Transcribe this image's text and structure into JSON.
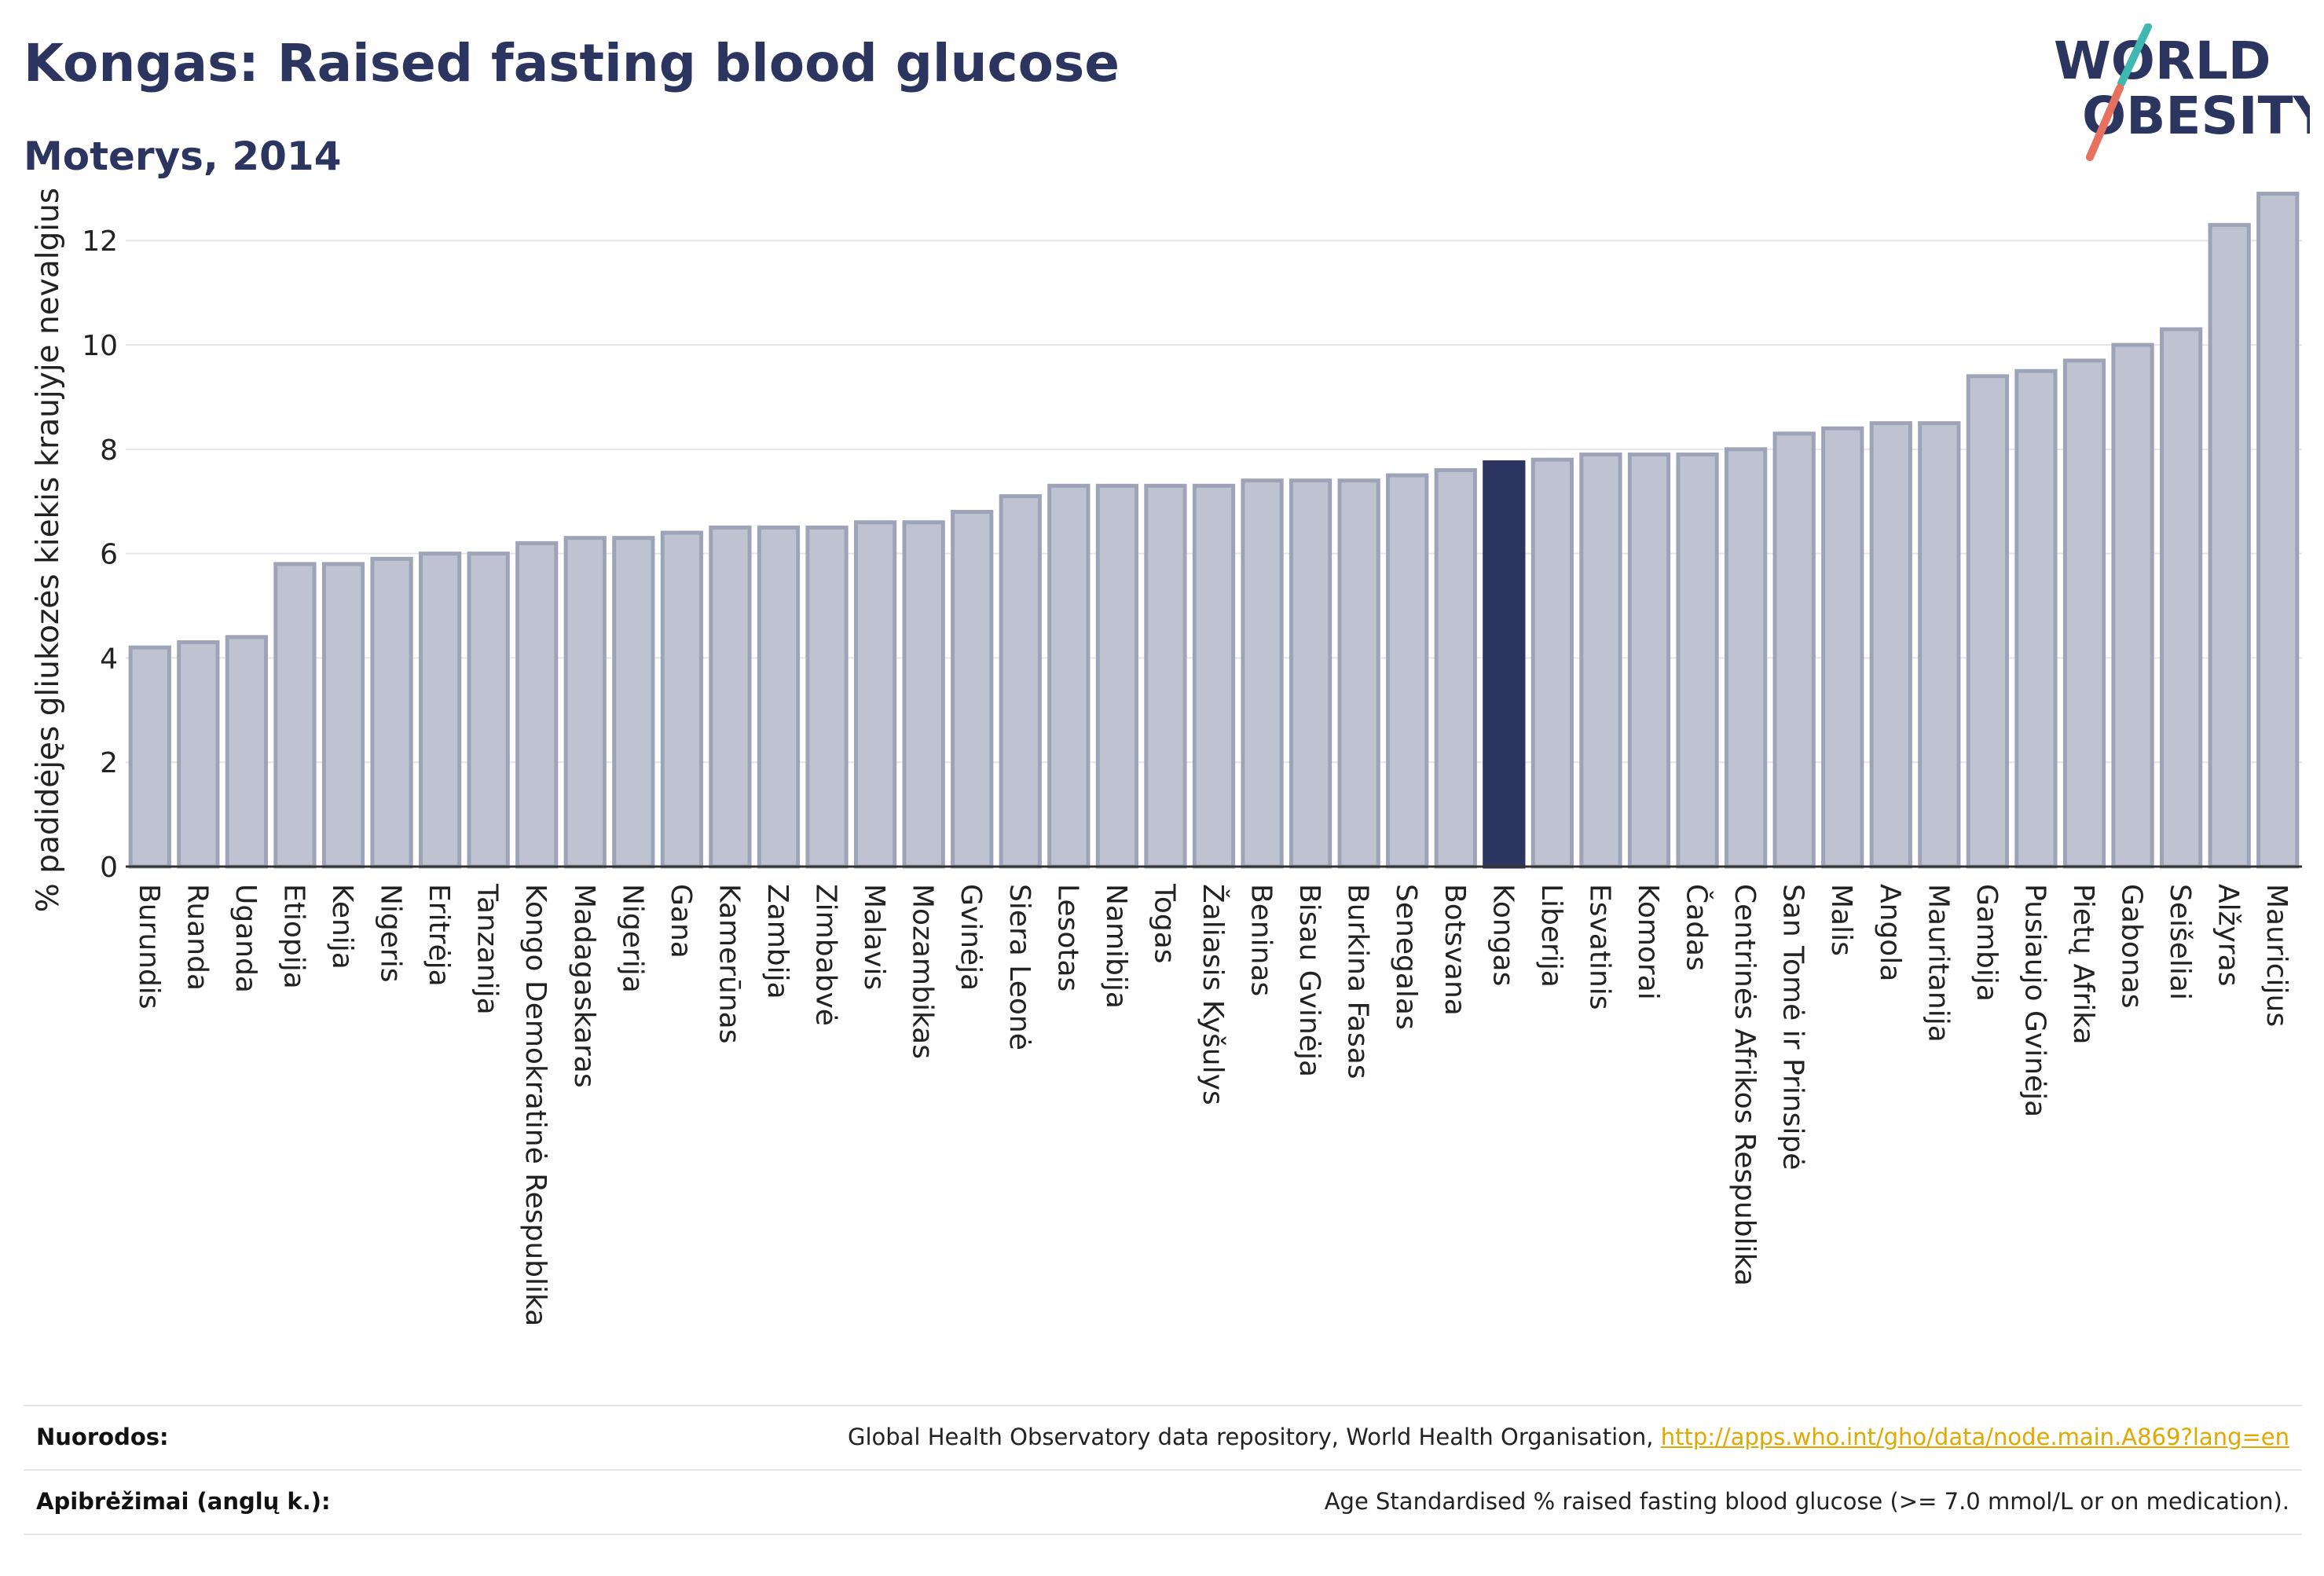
{
  "header": {
    "title": "Kongas: Raised fasting blood glucose",
    "subtitle": "Moterys, 2014"
  },
  "logo": {
    "line1": "WORLD",
    "line2": "OBESITY"
  },
  "colors": {
    "title": "#2b3560",
    "bar": "#bfc3d1",
    "bar_stroke": "#9ea4b8",
    "highlight": "#2b3560",
    "logo_teal": "#3fb8b0",
    "logo_coral": "#e8705e",
    "link": "#e0a800"
  },
  "chart_data": {
    "type": "bar",
    "ylabel": "% padidėjęs gliukozės kiekis kraujyje nevalgius",
    "xlabel": "",
    "ylim": [
      0,
      13.6
    ],
    "yticks": [
      0,
      2,
      4,
      6,
      8,
      10,
      12
    ],
    "grid": true,
    "highlight": "Kongas",
    "categories": [
      "Burundis",
      "Ruanda",
      "Uganda",
      "Etiopija",
      "Kenija",
      "Nigeris",
      "Eritrėja",
      "Tanzanija",
      "Kongo Demokratinė Respublika",
      "Madagaskaras",
      "Nigerija",
      "Gana",
      "Kamerūnas",
      "Zambija",
      "Zimbabvė",
      "Malavis",
      "Mozambikas",
      "Gvinėja",
      "Siera Leonė",
      "Lesotas",
      "Namibija",
      "Togas",
      "Žaliasis Kyšulys",
      "Beninas",
      "Bisau Gvinėja",
      "Burkina Fasas",
      "Senegalas",
      "Botsvana",
      "Kongas",
      "Liberija",
      "Esvatinis",
      "Komorai",
      "Čadas",
      "Centrinės Afrikos Respublika",
      "San Tomė ir Prinsipė",
      "Malis",
      "Angola",
      "Mauritanija",
      "Gambija",
      "Pusiaujo Gvinėja",
      "Pietų Afrika",
      "Gabonas",
      "Seišeliai",
      "Alžyras",
      "Mauricijus"
    ],
    "values": [
      4.2,
      4.3,
      4.4,
      5.8,
      5.8,
      5.9,
      6.0,
      6.0,
      6.2,
      6.3,
      6.3,
      6.4,
      6.5,
      6.5,
      6.5,
      6.6,
      6.6,
      6.8,
      7.1,
      7.3,
      7.3,
      7.3,
      7.3,
      7.4,
      7.4,
      7.4,
      7.5,
      7.6,
      7.75,
      7.8,
      7.9,
      7.9,
      7.9,
      8.0,
      8.3,
      8.4,
      8.5,
      8.5,
      9.4,
      9.5,
      9.7,
      10.0,
      10.3,
      12.3,
      12.9
    ]
  },
  "footer": {
    "sources_label": "Nuorodos:",
    "sources_text": "Global Health Observatory data repository, World Health Organisation, ",
    "sources_link": "http://apps.who.int/gho/data/node.main.A869?lang=en",
    "definitions_label": "Apibrėžimai (anglų k.):",
    "definitions_text": "Age Standardised % raised fasting blood glucose (>= 7.0 mmol/L or on medication)."
  }
}
